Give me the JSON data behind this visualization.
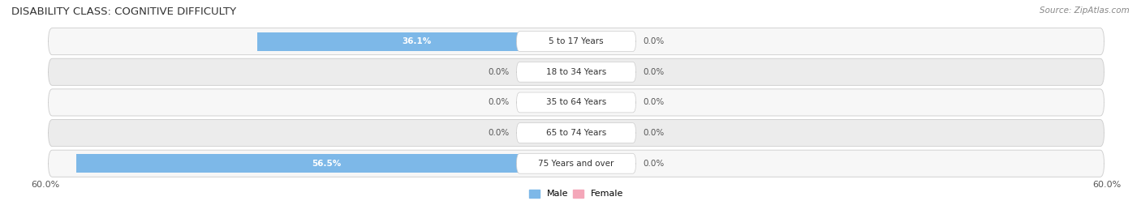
{
  "title": "DISABILITY CLASS: COGNITIVE DIFFICULTY",
  "source": "Source: ZipAtlas.com",
  "categories": [
    "5 to 17 Years",
    "18 to 34 Years",
    "35 to 64 Years",
    "65 to 74 Years",
    "75 Years and over"
  ],
  "male_values": [
    36.1,
    0.0,
    0.0,
    0.0,
    56.5
  ],
  "female_values": [
    0.0,
    0.0,
    0.0,
    0.0,
    0.0
  ],
  "x_max": 60.0,
  "male_color": "#7db8e8",
  "female_color": "#f4a7b9",
  "row_odd_color": "#f7f7f7",
  "row_even_color": "#ececec",
  "center_box_color": "#ffffff",
  "center_box_edge": "#cccccc",
  "title_fontsize": 9.5,
  "label_fontsize": 7.5,
  "tick_fontsize": 8,
  "legend_fontsize": 8,
  "min_stub": 2.0
}
